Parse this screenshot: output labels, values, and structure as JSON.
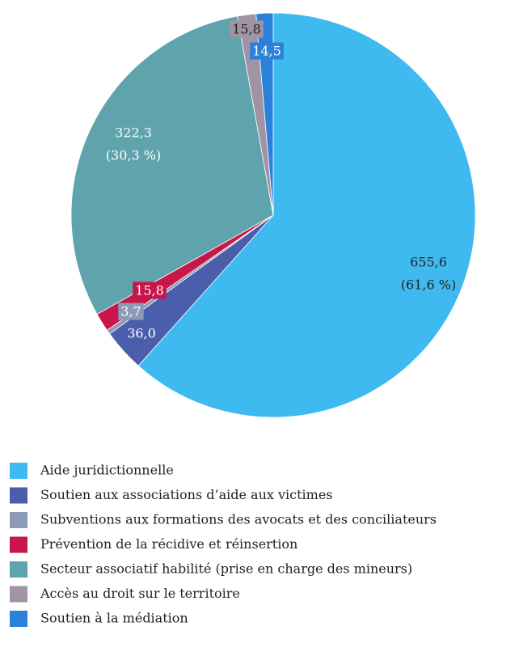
{
  "chart_data": {
    "type": "pie",
    "categories": [
      "Aide juridictionnelle",
      "Soutien aux associations d’aide aux victimes",
      "Subventions aux formations des avocats et des conciliateurs",
      "Prévention de la récidive et réinsertion",
      "Secteur associatif habilité (prise en charge des mineurs)",
      "Accès au droit sur le territoire",
      "Soutien à la médiation"
    ],
    "values": [
      655.6,
      36.0,
      3.7,
      15.8,
      322.3,
      15.8,
      14.5
    ],
    "value_labels": [
      "655,6",
      "36,0",
      "3,7",
      "15,8",
      "322,3",
      "15,8",
      "14,5"
    ],
    "share_labels": [
      "(61,6 %)",
      null,
      null,
      null,
      "(30,3 %)",
      null,
      null
    ],
    "colors": [
      "#3fbaf0",
      "#4a5eab",
      "#8c9ab6",
      "#c8164a",
      "#5fa4ad",
      "#9f93a4",
      "#2b80d9"
    ],
    "legend": "bottom"
  }
}
